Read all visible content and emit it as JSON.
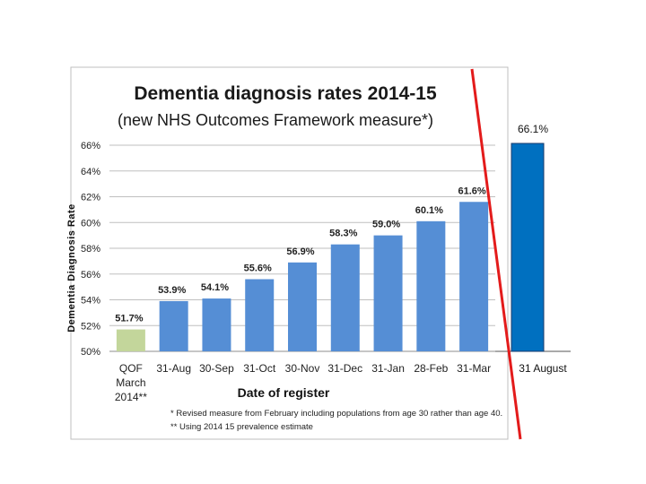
{
  "chart_data": [
    {
      "type": "bar",
      "title": "Dementia diagnosis rates 2014-15",
      "subtitle": "(new NHS Outcomes Framework measure*)",
      "xlabel": "Date of register",
      "ylabel": "Dementia Diagnosis Rate",
      "ylim": [
        50,
        66
      ],
      "yticks": [
        "50%",
        "52%",
        "54%",
        "56%",
        "58%",
        "60%",
        "62%",
        "64%",
        "66%"
      ],
      "grid": true,
      "categories": [
        "QOF March 2014**",
        "31-Aug",
        "30-Sep",
        "31-Oct",
        "30-Nov",
        "31-Dec",
        "31-Jan",
        "28-Feb",
        "31-Mar"
      ],
      "category_lines": [
        [
          "QOF",
          "March",
          "2014**"
        ],
        [
          "31-Aug"
        ],
        [
          "30-Sep"
        ],
        [
          "31-Oct"
        ],
        [
          "30-Nov"
        ],
        [
          "31-Dec"
        ],
        [
          "31-Jan"
        ],
        [
          "28-Feb"
        ],
        [
          "31-Mar"
        ]
      ],
      "values": [
        51.7,
        53.9,
        54.1,
        55.6,
        56.9,
        58.3,
        59.0,
        60.1,
        61.6
      ],
      "data_labels": [
        "51.7%",
        "53.9%",
        "54.1%",
        "55.6%",
        "56.9%",
        "58.3%",
        "59.0%",
        "60.1%",
        "61.6%"
      ],
      "colors": [
        "#c3d69b",
        "#558ed5",
        "#558ed5",
        "#558ed5",
        "#558ed5",
        "#558ed5",
        "#558ed5",
        "#558ed5",
        "#558ed5"
      ],
      "notes": [
        "*  Revised measure from February including populations from age 30 rather than age 40.",
        "** Using 2014  15 prevalence estimate"
      ]
    },
    {
      "type": "bar",
      "categories": [
        "31 August"
      ],
      "values": [
        66.1
      ],
      "data_labels": [
        "66.1%"
      ],
      "colors": [
        "#0070c0"
      ],
      "ylim": [
        50,
        66.1
      ]
    }
  ],
  "annotation": {
    "type": "diagonal-line",
    "color": "#e31b1b"
  }
}
